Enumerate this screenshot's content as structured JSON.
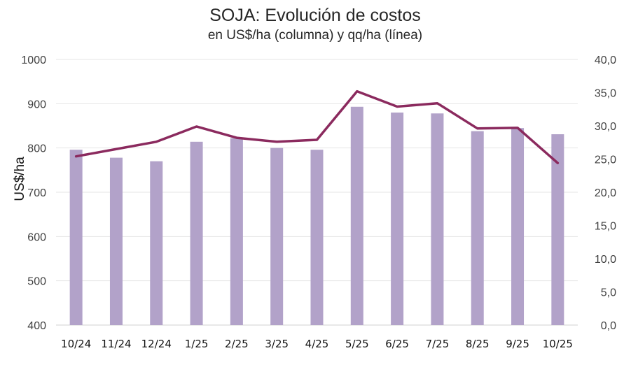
{
  "chart_data": {
    "type": "bar",
    "combo": "bar+line (dual axis)",
    "title": "SOJA: Evolución de costos",
    "subtitle": "en US$/ha (columna) y qq/ha (línea)",
    "xlabel": "",
    "ylabel": "US$/ha",
    "ylabel_right": "",
    "categories": [
      "10/24",
      "11/24",
      "12/24",
      "1/25",
      "2/25",
      "3/25",
      "4/25",
      "5/25",
      "6/25",
      "7/25",
      "8/25",
      "9/25",
      "10/25"
    ],
    "series": [
      {
        "name": "US$/ha",
        "type": "bar",
        "axis": "left",
        "color": "#b2a2c9",
        "values": [
          796,
          778,
          770,
          814,
          822,
          800,
          796,
          893,
          880,
          878,
          838,
          845,
          831
        ]
      },
      {
        "name": "qq/ha",
        "type": "line",
        "axis": "right",
        "color": "#8b2a5e",
        "values": [
          25.4,
          26.5,
          27.6,
          29.9,
          28.2,
          27.6,
          27.9,
          35.2,
          32.9,
          33.4,
          29.6,
          29.7,
          24.4
        ]
      }
    ],
    "ylim": [
      400,
      1000
    ],
    "yticks": [
      "400",
      "500",
      "600",
      "700",
      "800",
      "900",
      "1000"
    ],
    "ylim_right": [
      0,
      40
    ],
    "yticks_right": [
      "0,0",
      "5,0",
      "10,0",
      "15,0",
      "20,0",
      "25,0",
      "30,0",
      "35,0",
      "40,0"
    ],
    "grid": true,
    "legend": "none"
  }
}
